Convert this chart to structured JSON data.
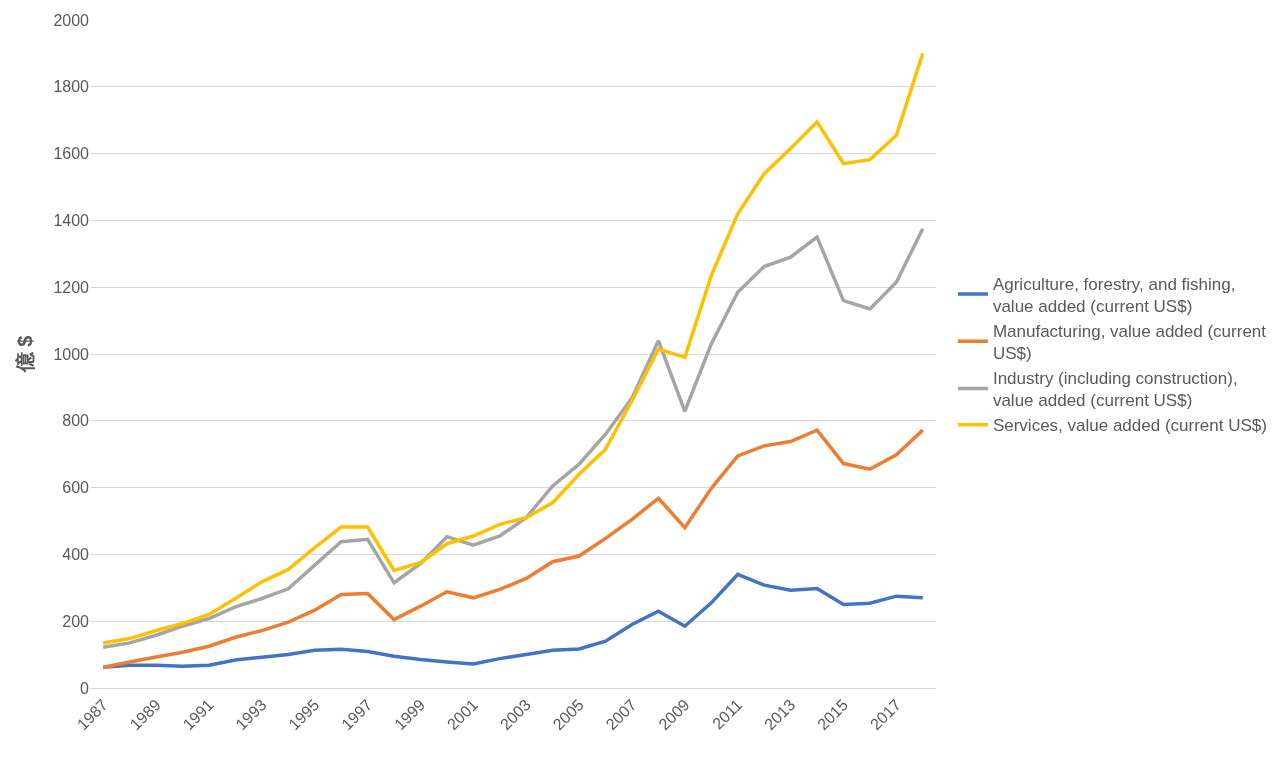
{
  "chart_data": {
    "type": "line",
    "ylabel": "億 $",
    "x": [
      1987,
      1988,
      1989,
      1990,
      1991,
      1992,
      1993,
      1994,
      1995,
      1996,
      1997,
      1998,
      1999,
      2000,
      2001,
      2002,
      2003,
      2004,
      2005,
      2006,
      2007,
      2008,
      2009,
      2010,
      2011,
      2012,
      2013,
      2014,
      2015,
      2016,
      2017,
      2018
    ],
    "xlim": [
      1986.5,
      2018.5
    ],
    "xticks": [
      1987,
      1989,
      1991,
      1993,
      1995,
      1997,
      1999,
      2001,
      2003,
      2005,
      2007,
      2009,
      2011,
      2013,
      2015,
      2017
    ],
    "ylim": [
      0,
      2000
    ],
    "yticks": [
      0,
      200,
      400,
      600,
      800,
      1000,
      1200,
      1400,
      1600,
      1800,
      2000
    ],
    "grid": "y",
    "legend": "right",
    "marker": "none",
    "line_style": "solid",
    "series": [
      {
        "name": "Agriculture, forestry, and fishing, value added (current US$)",
        "color": "#4472c4",
        "values": [
          62,
          68,
          68,
          65,
          68,
          84,
          92,
          100,
          113,
          116,
          109,
          95,
          85,
          78,
          72,
          88,
          100,
          113,
          117,
          140,
          190,
          230,
          185,
          255,
          340,
          308,
          293,
          298,
          250,
          254,
          275,
          270
        ]
      },
      {
        "name": "Manufacturing, value added (current US$)",
        "color": "#ed7d31",
        "values": [
          62,
          78,
          93,
          107,
          125,
          152,
          172,
          197,
          233,
          280,
          283,
          205,
          245,
          288,
          270,
          295,
          328,
          378,
          395,
          448,
          505,
          568,
          480,
          598,
          695,
          725,
          738,
          772,
          672,
          655,
          698,
          772
        ]
      },
      {
        "name": "Industry (including construction), value added (current US$)",
        "color": "#a5a5a5",
        "values": [
          122,
          135,
          158,
          185,
          208,
          243,
          268,
          297,
          368,
          438,
          445,
          315,
          372,
          453,
          428,
          455,
          510,
          605,
          670,
          760,
          868,
          1040,
          828,
          1030,
          1185,
          1262,
          1290,
          1350,
          1160,
          1135,
          1215,
          1375
        ]
      },
      {
        "name": "Services, value added (current US$)",
        "color": "#ffc000",
        "values": [
          135,
          148,
          172,
          193,
          220,
          268,
          318,
          355,
          420,
          482,
          482,
          352,
          375,
          432,
          455,
          490,
          510,
          555,
          640,
          715,
          860,
          1015,
          990,
          1235,
          1420,
          1540,
          1615,
          1695,
          1570,
          1582,
          1655,
          1900
        ]
      }
    ]
  }
}
